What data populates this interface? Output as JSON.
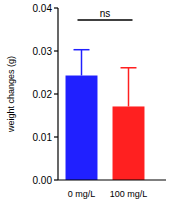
{
  "chart_data": {
    "type": "bar",
    "y_label": "weight changes (g)",
    "categories": [
      "0 mg/L",
      "100 mg/L"
    ],
    "values": [
      0.0243,
      0.0171
    ],
    "errors": [
      0.006,
      0.009
    ],
    "colors": [
      "#2020ff",
      "#ff2020"
    ],
    "ylim": [
      0,
      0.04
    ],
    "yticks": [
      {
        "value": 0,
        "label": "0.00"
      },
      {
        "value": 0.01,
        "label": "0.01"
      },
      {
        "value": 0.02,
        "label": "0.02"
      },
      {
        "value": 0.03,
        "label": "0.03"
      },
      {
        "value": 0.04,
        "label": "0.04"
      }
    ],
    "annotation": "ns"
  }
}
